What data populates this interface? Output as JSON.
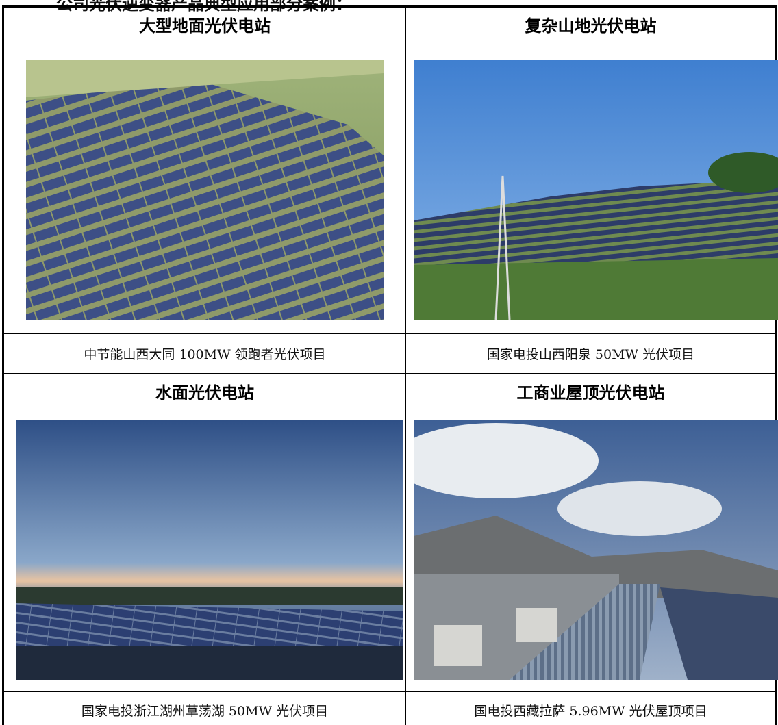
{
  "intro": "公司光伏逆变器产品典型应用部分案例：",
  "table": {
    "cells": [
      {
        "title": "大型地面光伏电站",
        "caption": "中节能山西大同 100MW 领跑者光伏项目"
      },
      {
        "title": "复杂山地光伏电站",
        "caption": "国家电投山西阳泉 50MW 光伏项目"
      },
      {
        "title": "水面光伏电站",
        "caption": "国家电投浙江湖州草荡湖 50MW 光伏项目"
      },
      {
        "title": "工商业屋顶光伏电站",
        "caption": "国电投西藏拉萨 5.96MW 光伏屋顶项目"
      }
    ]
  }
}
